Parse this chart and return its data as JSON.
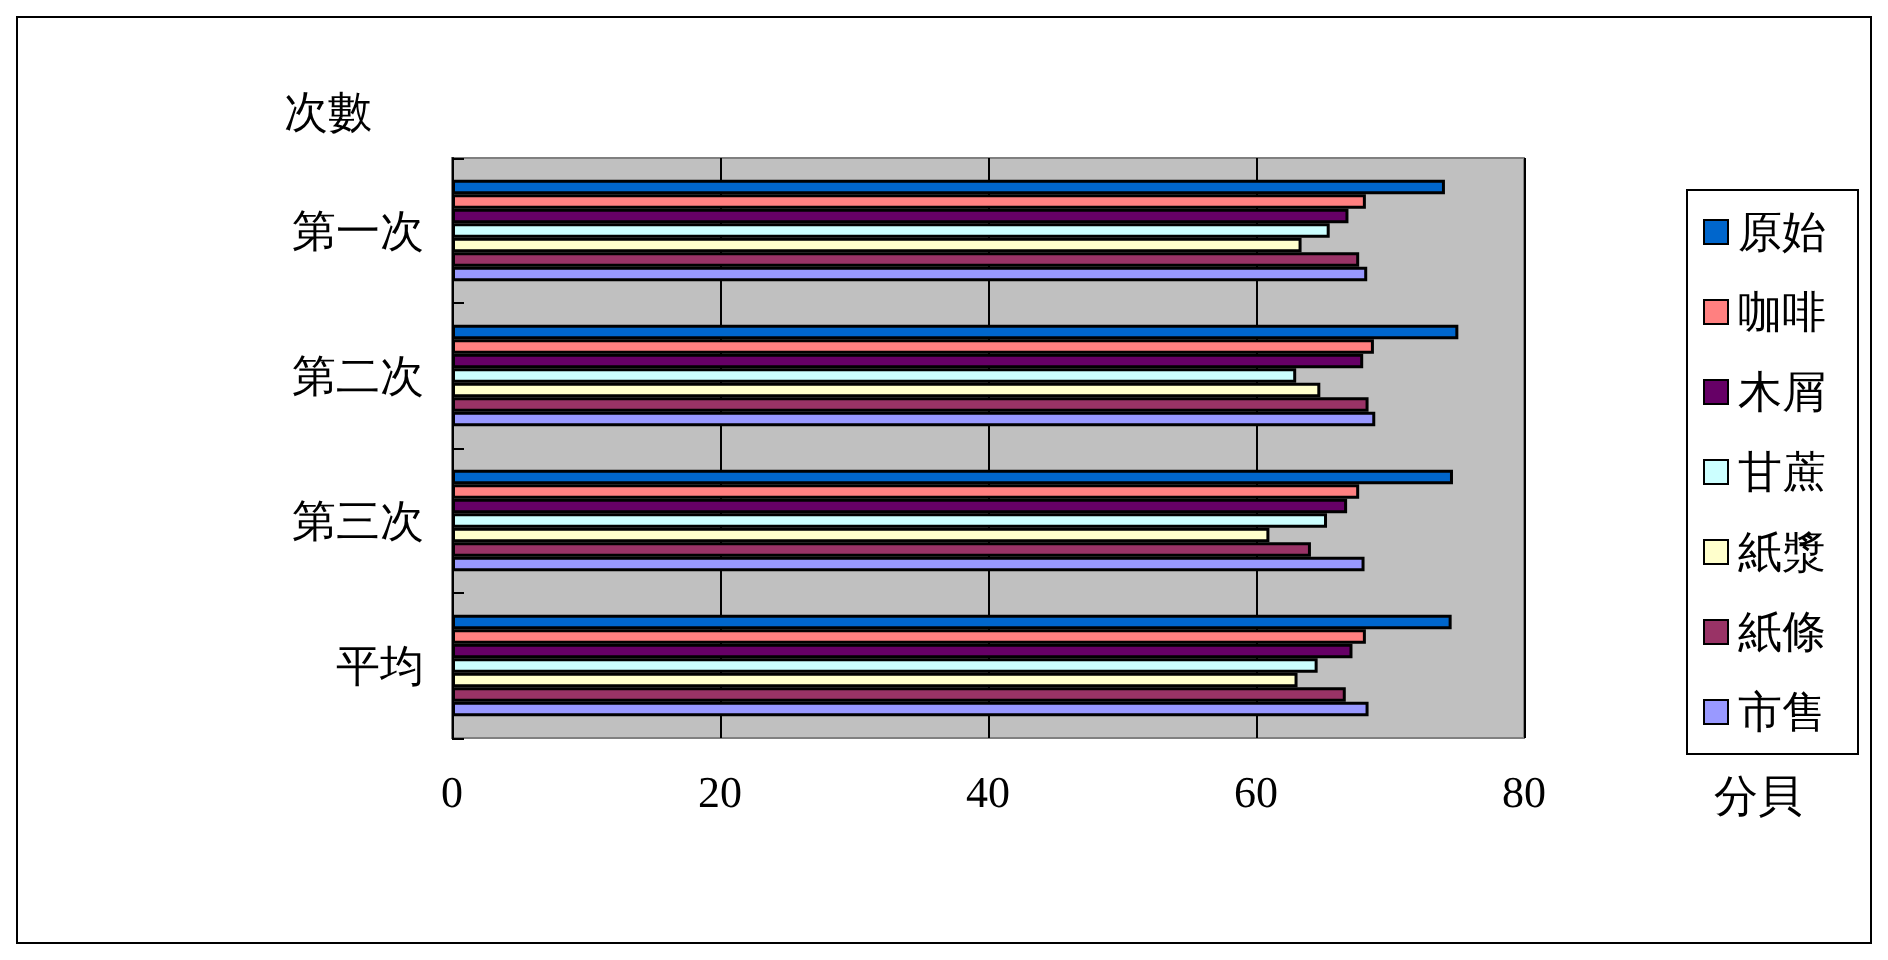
{
  "chart_data": {
    "type": "bar",
    "orientation": "horizontal",
    "xlabel": "分貝",
    "ylabel": "次數",
    "categories": [
      "第一次",
      "第二次",
      "第三次",
      "平均"
    ],
    "series": [
      {
        "name": "原始",
        "color": "#0066cc",
        "values": [
          74.1,
          75.1,
          74.7,
          74.6
        ]
      },
      {
        "name": "咖啡",
        "color": "#ff8080",
        "values": [
          68.2,
          68.8,
          67.7,
          68.2
        ]
      },
      {
        "name": "木屑",
        "color": "#660066",
        "values": [
          66.9,
          68.0,
          66.8,
          67.2
        ]
      },
      {
        "name": "甘蔗",
        "color": "#ccffff",
        "values": [
          65.5,
          63.0,
          65.3,
          64.6
        ]
      },
      {
        "name": "紙漿",
        "color": "#ffffcc",
        "values": [
          63.4,
          64.8,
          61.0,
          63.1
        ]
      },
      {
        "name": "紙條",
        "color": "#993366",
        "values": [
          67.7,
          68.4,
          64.1,
          66.7
        ]
      },
      {
        "name": "市售",
        "color": "#9999ff",
        "values": [
          68.3,
          68.9,
          68.1,
          68.4
        ]
      }
    ],
    "xlim": [
      0,
      80
    ],
    "xticks": [
      0,
      20,
      40,
      60,
      80
    ],
    "grid": "x",
    "legend": "right"
  }
}
